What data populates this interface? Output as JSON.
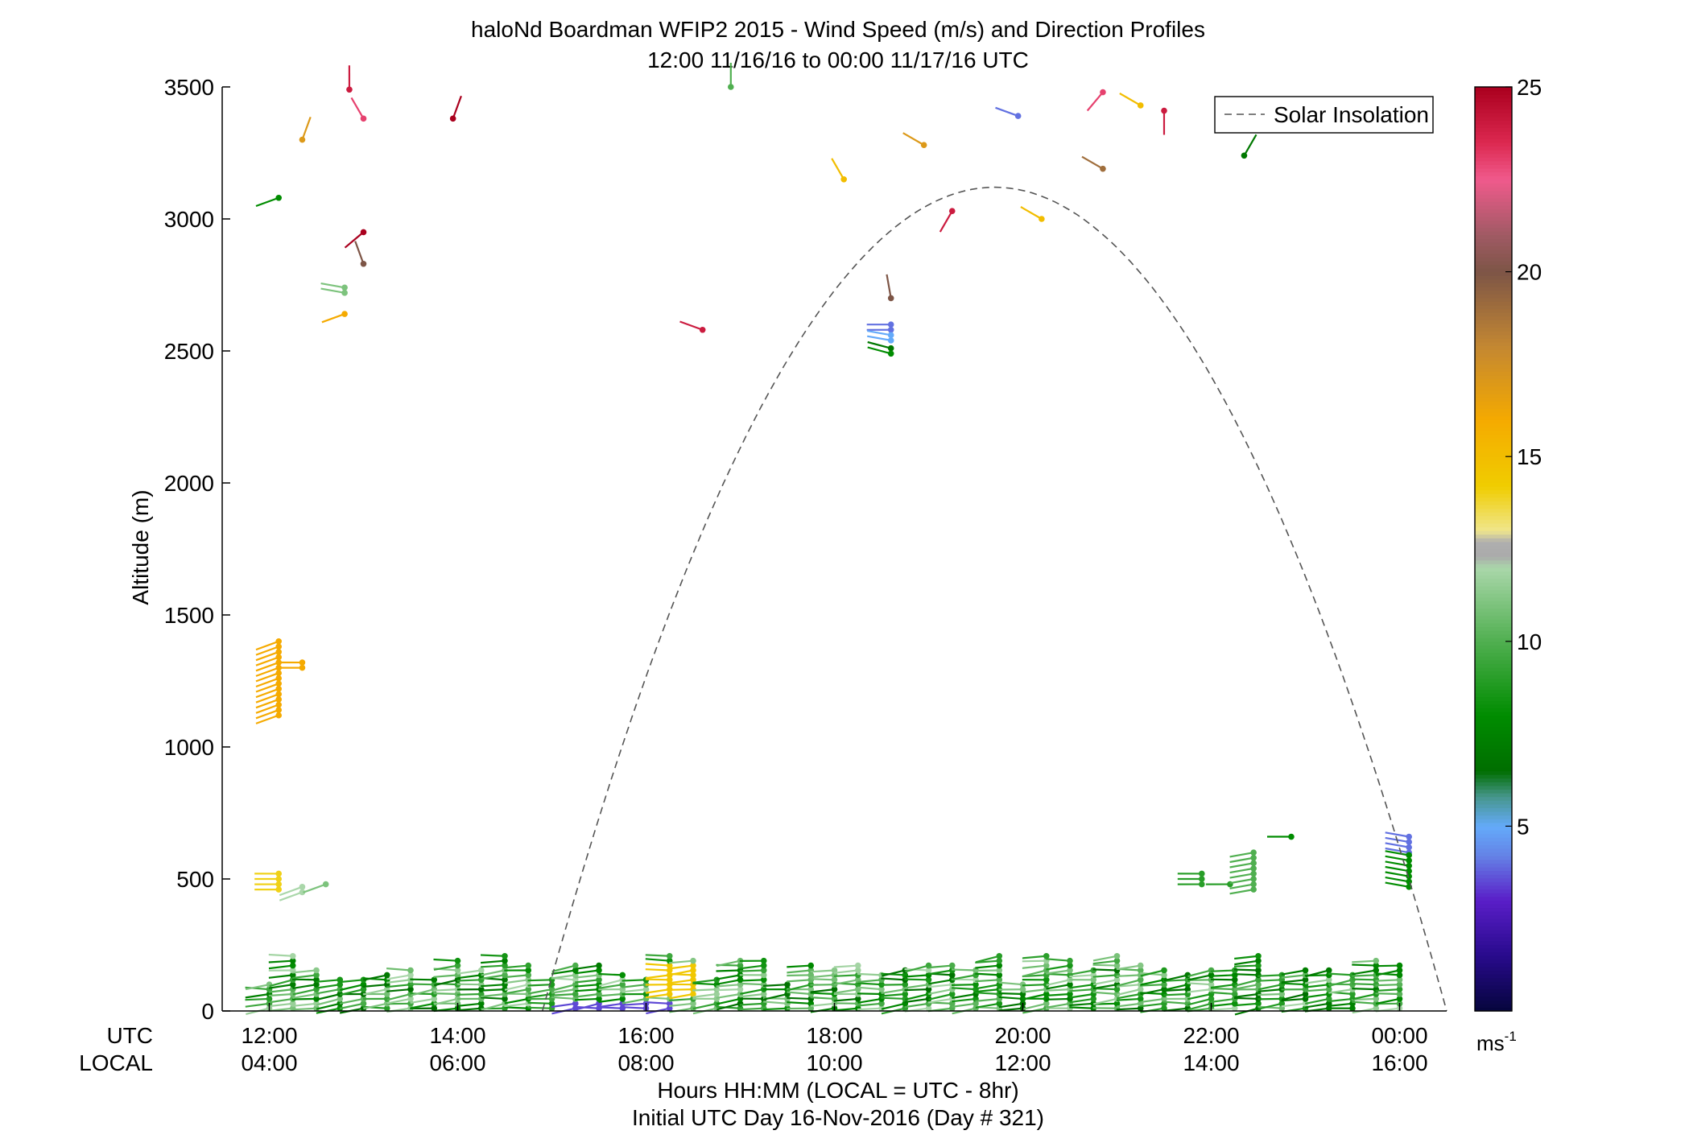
{
  "chart_data": {
    "type": "scatter",
    "title": "haloNd Boardman WFIP2 2015 - Wind Speed (m/s) and Direction Profiles",
    "subtitle": "12:00 11/16/16 to 00:00 11/17/16  UTC",
    "xlabel": "Hours HH:MM  (LOCAL = UTC - 8hr)",
    "xlabel2": "Initial UTC Day 16-Nov-2016 (Day # 321)",
    "ylabel": "Altitude (m)",
    "ylim": [
      0,
      3500
    ],
    "xlim_hours_utc": [
      11.5,
      24.5
    ],
    "y_ticks": [
      "0",
      "500",
      "1000",
      "1500",
      "2000",
      "2500",
      "3000",
      "3500"
    ],
    "x_ticks": [
      {
        "utc": "12:00",
        "local": "04:00",
        "hour": 12
      },
      {
        "utc": "14:00",
        "local": "06:00",
        "hour": 14
      },
      {
        "utc": "16:00",
        "local": "08:00",
        "hour": 16
      },
      {
        "utc": "18:00",
        "local": "10:00",
        "hour": 18
      },
      {
        "utc": "20:00",
        "local": "12:00",
        "hour": 20
      },
      {
        "utc": "22:00",
        "local": "14:00",
        "hour": 22
      },
      {
        "utc": "00:00",
        "local": "16:00",
        "hour": 24
      }
    ],
    "row_labels": {
      "utc": "UTC",
      "local": "LOCAL"
    },
    "legend": {
      "label": "Solar Insolation",
      "placement": "top-right"
    },
    "colorbar": {
      "min": 0,
      "max": 25,
      "ticks": [
        "5",
        "10",
        "15",
        "20",
        "25"
      ],
      "unit_label": "ms",
      "unit_exp": "-1"
    },
    "solar_insolation": {
      "start_hour": 14.9,
      "end_hour": 24.5,
      "peak_hour": 19.7,
      "peak_altitude": 3120
    },
    "wind_barbs": [
      {
        "hour": 12.1,
        "alt": 3080,
        "speed": 8,
        "dir": 250
      },
      {
        "hour": 12.35,
        "alt": 3300,
        "speed": 17,
        "dir": 20
      },
      {
        "hour": 12.85,
        "alt": 3490,
        "speed": 24,
        "dir": 0
      },
      {
        "hour": 13.0,
        "alt": 3380,
        "speed": 23,
        "dir": 330
      },
      {
        "hour": 13.95,
        "alt": 3380,
        "speed": 25,
        "dir": 20
      },
      {
        "hour": 13.0,
        "alt": 2950,
        "speed": 25,
        "dir": 230
      },
      {
        "hour": 13.0,
        "alt": 2830,
        "speed": 20,
        "dir": 340
      },
      {
        "hour": 12.8,
        "alt": 2740,
        "speed": 11,
        "dir": 280
      },
      {
        "hour": 12.8,
        "alt": 2720,
        "speed": 11,
        "dir": 280
      },
      {
        "hour": 12.8,
        "alt": 2640,
        "speed": 16,
        "dir": 250
      },
      {
        "hour": 16.6,
        "alt": 2580,
        "speed": 24,
        "dir": 290
      },
      {
        "hour": 16.9,
        "alt": 3500,
        "speed": 10,
        "dir": 0
      },
      {
        "hour": 18.1,
        "alt": 3150,
        "speed": 15,
        "dir": 330
      },
      {
        "hour": 18.95,
        "alt": 3280,
        "speed": 17,
        "dir": 300
      },
      {
        "hour": 19.25,
        "alt": 3030,
        "speed": 24,
        "dir": 210
      },
      {
        "hour": 19.95,
        "alt": 3390,
        "speed": 4,
        "dir": 290
      },
      {
        "hour": 20.2,
        "alt": 3000,
        "speed": 15,
        "dir": 300
      },
      {
        "hour": 18.6,
        "alt": 2700,
        "speed": 20,
        "dir": 350
      },
      {
        "hour": 18.6,
        "alt": 2600,
        "speed": 4,
        "dir": 270
      },
      {
        "hour": 18.6,
        "alt": 2580,
        "speed": 4,
        "dir": 270
      },
      {
        "hour": 18.6,
        "alt": 2560,
        "speed": 5,
        "dir": 280
      },
      {
        "hour": 18.6,
        "alt": 2540,
        "speed": 5,
        "dir": 280
      },
      {
        "hour": 18.6,
        "alt": 2510,
        "speed": 7,
        "dir": 285
      },
      {
        "hour": 18.6,
        "alt": 2490,
        "speed": 8,
        "dir": 285
      },
      {
        "hour": 20.85,
        "alt": 3480,
        "speed": 23,
        "dir": 220
      },
      {
        "hour": 21.25,
        "alt": 3430,
        "speed": 15,
        "dir": 300
      },
      {
        "hour": 21.5,
        "alt": 3410,
        "speed": 24,
        "dir": 180
      },
      {
        "hour": 20.85,
        "alt": 3190,
        "speed": 19,
        "dir": 300
      },
      {
        "hour": 22.35,
        "alt": 3240,
        "speed": 7,
        "dir": 30
      },
      {
        "hour": 22.85,
        "alt": 660,
        "speed": 8,
        "dir": 270
      }
    ],
    "wind_barb_columns": [
      {
        "hour": 12.1,
        "alt_min": 1120,
        "alt_max": 1400,
        "step": 20,
        "speed": 16,
        "dir": 250
      },
      {
        "hour": 12.35,
        "alt_min": 1300,
        "alt_max": 1320,
        "step": 20,
        "speed": 16,
        "dir": 270
      },
      {
        "hour": 12.1,
        "alt_min": 460,
        "alt_max": 520,
        "step": 20,
        "speed": 14,
        "dir": 270
      },
      {
        "hour": 12.35,
        "alt_min": 450,
        "alt_max": 470,
        "step": 20,
        "speed": 12,
        "dir": 250
      },
      {
        "hour": 12.6,
        "alt_min": 480,
        "alt_max": 480,
        "step": 20,
        "speed": 11,
        "dir": 250
      },
      {
        "hour": 21.9,
        "alt_min": 480,
        "alt_max": 520,
        "step": 20,
        "speed": 9,
        "dir": 270
      },
      {
        "hour": 22.2,
        "alt_min": 480,
        "alt_max": 480,
        "step": 20,
        "speed": 9,
        "dir": 270
      },
      {
        "hour": 22.45,
        "alt_min": 460,
        "alt_max": 600,
        "step": 20,
        "speed": 10,
        "dir": 260
      },
      {
        "hour": 24.1,
        "alt_min": 600,
        "alt_max": 660,
        "step": 20,
        "speed": 4,
        "dir": 280
      },
      {
        "hour": 24.1,
        "alt_min": 470,
        "alt_max": 590,
        "step": 20,
        "speed": 8,
        "dir": 280
      }
    ]
  }
}
